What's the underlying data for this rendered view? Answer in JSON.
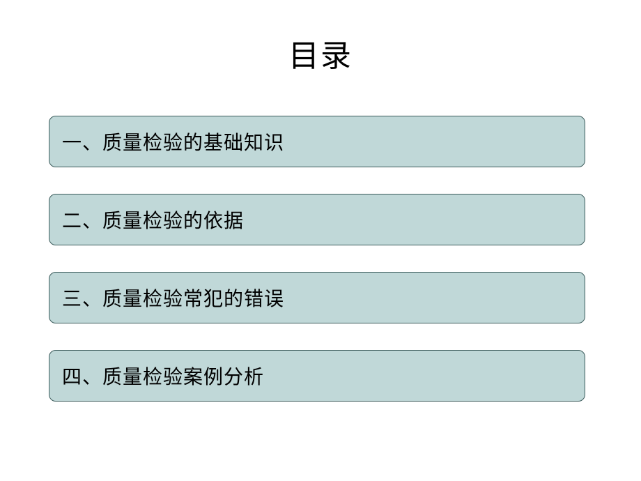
{
  "title": "目录",
  "toc": {
    "items": [
      {
        "label": "一、质量检验的基础知识"
      },
      {
        "label": "二、质量检验的依据"
      },
      {
        "label": "三、质量检验常犯的错误"
      },
      {
        "label": "四、质量检验案例分析"
      }
    ],
    "item_bg_color": "#c0d8d8",
    "item_border_color": "#3a5a5a",
    "item_border_radius": 10,
    "item_fontsize": 28,
    "title_fontsize": 44
  },
  "background_color": "#ffffff"
}
